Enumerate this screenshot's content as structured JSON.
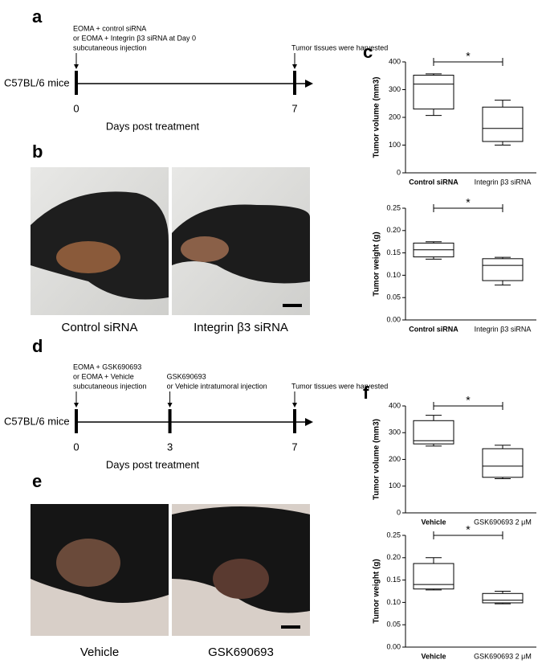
{
  "panel_labels": [
    "a",
    "b",
    "c",
    "d",
    "e",
    "f"
  ],
  "timelines": [
    {
      "subject": "C57BL/6 mice",
      "xlabel": "Days post treatment",
      "xlim": [
        0,
        7
      ],
      "xticks": [
        0,
        7
      ],
      "notes": [
        [
          "EOMA + control siRNA",
          "or  EOMA + Integrin β3 siRNA at Day 0",
          "subcutaneous injection"
        ],
        [
          "Tumor tissues were harvested"
        ]
      ]
    },
    {
      "subject": "C57BL/6 mice",
      "xlabel": "Days post treatment",
      "xlim": [
        0,
        7
      ],
      "xticks": [
        0,
        3,
        7
      ],
      "notes": [
        [
          "EOMA + GSK690693",
          "or  EOMA + Vehicle",
          "subcutaneous injection"
        ],
        [
          "GSK690693",
          "or  Vehicle intratumoral injection"
        ],
        [
          "Tumor tissues were harvested"
        ]
      ]
    }
  ],
  "photos": [
    {
      "captions": [
        "Control siRNA",
        "Integrin β3 siRNA"
      ]
    },
    {
      "captions": [
        "Vehicle",
        "GSK690693"
      ]
    }
  ],
  "chart_data": [
    {
      "type": "box",
      "ylabel": "Tumor volume (mm3)",
      "categories": [
        "Control siRNA",
        "Integrin β3 siRNA"
      ],
      "boxes": [
        {
          "min": 207,
          "q1": 230,
          "median": 320,
          "q3": 352,
          "max": 357
        },
        {
          "min": 100,
          "q1": 113,
          "median": 160,
          "q3": 237,
          "max": 262
        }
      ],
      "ylim": [
        0,
        400
      ],
      "yticks": [
        0,
        100,
        200,
        300,
        400
      ],
      "annotation": "*",
      "color": "#000000"
    },
    {
      "type": "box",
      "ylabel": "Tumor weight (g)",
      "categories": [
        "Control siRNA",
        "Integrin β3 siRNA"
      ],
      "boxes": [
        {
          "min": 0.136,
          "q1": 0.141,
          "median": 0.157,
          "q3": 0.172,
          "max": 0.175
        },
        {
          "min": 0.078,
          "q1": 0.088,
          "median": 0.122,
          "q3": 0.137,
          "max": 0.14
        }
      ],
      "ylim": [
        0,
        0.25
      ],
      "yticks": [
        {
          "value": 0,
          "label": "0.00"
        },
        {
          "value": 0.05,
          "label": "0.05"
        },
        {
          "value": 0.1,
          "label": "0.10"
        },
        {
          "value": 0.15,
          "label": "0.15"
        },
        {
          "value": 0.2,
          "label": "0.20"
        },
        {
          "value": 0.25,
          "label": "0.25"
        }
      ],
      "annotation": "*",
      "color": "#000000"
    },
    {
      "type": "box",
      "ylabel": "Tumor volume (mm3)",
      "categories": [
        "Vehicle",
        "GSK690693 2 μM"
      ],
      "boxes": [
        {
          "min": 250,
          "q1": 258,
          "median": 270,
          "q3": 345,
          "max": 365
        },
        {
          "min": 128,
          "q1": 133,
          "median": 175,
          "q3": 240,
          "max": 253
        }
      ],
      "ylim": [
        0,
        400
      ],
      "yticks": [
        0,
        100,
        200,
        300,
        400
      ],
      "annotation": "*",
      "color": "#000000"
    },
    {
      "type": "box",
      "ylabel": "Tumor weight (g)",
      "categories": [
        "Vehicle",
        "GSK690693 2 μM"
      ],
      "boxes": [
        {
          "min": 0.128,
          "q1": 0.13,
          "median": 0.14,
          "q3": 0.187,
          "max": 0.2
        },
        {
          "min": 0.097,
          "q1": 0.099,
          "median": 0.105,
          "q3": 0.12,
          "max": 0.125
        }
      ],
      "ylim": [
        0,
        0.25
      ],
      "yticks": [
        {
          "value": 0,
          "label": "0.00"
        },
        {
          "value": 0.05,
          "label": "0.05"
        },
        {
          "value": 0.1,
          "label": "0.10"
        },
        {
          "value": 0.15,
          "label": "0.15"
        },
        {
          "value": 0.2,
          "label": "0.20"
        },
        {
          "value": 0.25,
          "label": "0.25"
        }
      ],
      "annotation": "*",
      "color": "#000000"
    }
  ]
}
